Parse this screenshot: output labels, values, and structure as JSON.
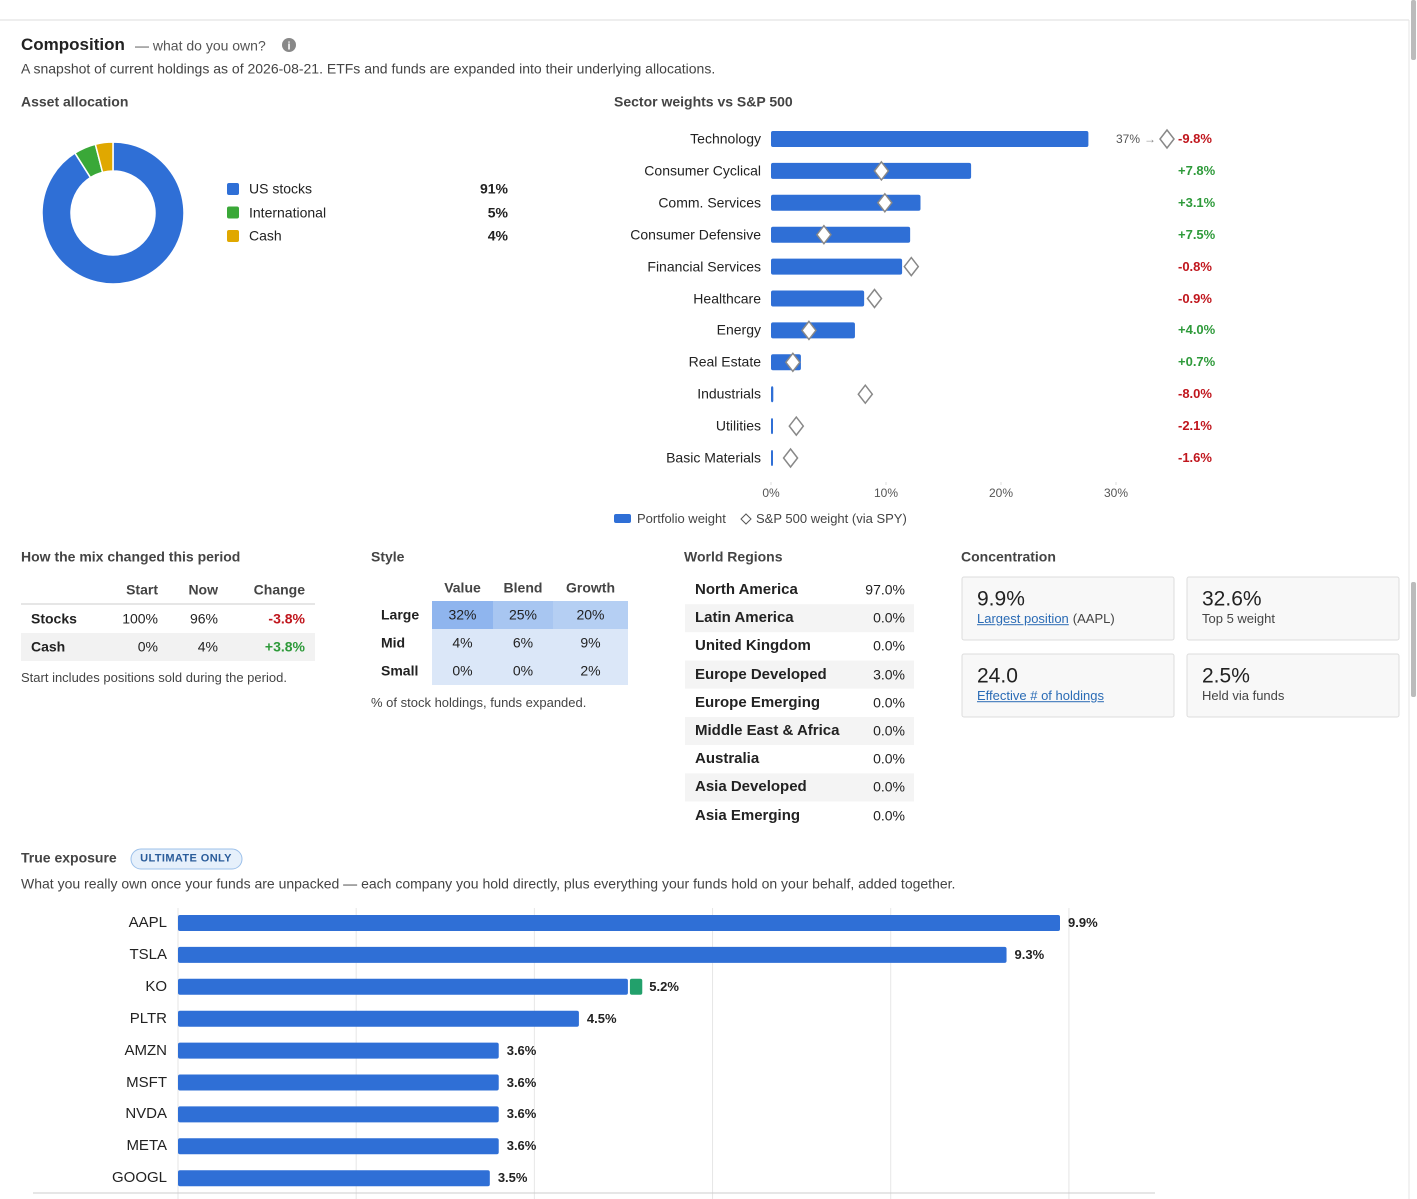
{
  "header": {
    "title": "Composition",
    "subtitle": "— what do you own?",
    "description": "A snapshot of current holdings as of 2026-08-21. ETFs and funds are expanded into their underlying allocations."
  },
  "chart_data": [
    {
      "type": "pie",
      "donut": true,
      "title": "Asset allocation",
      "categories": [
        "US stocks",
        "International",
        "Cash"
      ],
      "values": [
        91,
        5,
        4
      ],
      "value_labels": [
        "91%",
        "5%",
        "4%"
      ],
      "colors": [
        "#2f6fd6",
        "#3aa838",
        "#e0a800"
      ]
    },
    {
      "type": "bar",
      "orientation": "horizontal",
      "title": "Sector weights vs S&P 500",
      "categories": [
        "Technology",
        "Consumer Cyclical",
        "Comm. Services",
        "Consumer Defensive",
        "Financial Services",
        "Healthcare",
        "Energy",
        "Real Estate",
        "Industrials",
        "Utilities",
        "Basic Materials"
      ],
      "series": [
        {
          "name": "Portfolio weight",
          "color": "#2f6fd6",
          "values": [
            27.6,
            17.4,
            13.0,
            12.1,
            11.4,
            8.1,
            7.3,
            2.6,
            0.2,
            0.1,
            0.1
          ]
        },
        {
          "name": "S&P 500 weight (via SPY)",
          "marker": "diamond",
          "color": "#888888",
          "values": [
            37,
            9.6,
            9.9,
            4.6,
            12.2,
            9.0,
            3.3,
            1.9,
            8.2,
            2.2,
            1.7
          ],
          "value_labels": [
            "37%",
            null,
            null,
            null,
            null,
            null,
            null,
            null,
            null,
            null,
            null
          ]
        }
      ],
      "differences": {
        "values": [
          -9.8,
          7.8,
          3.1,
          7.5,
          -0.8,
          -0.9,
          4.0,
          0.7,
          -8.0,
          -2.1,
          -1.6
        ],
        "value_labels": [
          "-9.8%",
          "+7.8%",
          "+3.1%",
          "+7.5%",
          "-0.8%",
          "-0.9%",
          "+4.0%",
          "+0.7%",
          "-8.0%",
          "-2.1%",
          "-1.6%"
        ]
      },
      "xlim": [
        0,
        30
      ],
      "xticks": [
        {
          "value": 0,
          "label": "0%"
        },
        {
          "value": 10,
          "label": "10%"
        },
        {
          "value": 20,
          "label": "20%"
        },
        {
          "value": 30,
          "label": "30%"
        }
      ]
    },
    {
      "type": "bar",
      "orientation": "horizontal",
      "title": "True exposure",
      "badge": "ULTIMATE ONLY",
      "subtitle": "What you really own once your funds are unpacked — each company you hold directly, plus everything your funds hold on your behalf, added together.",
      "categories": [
        "AAPL",
        "TSLA",
        "KO",
        "PLTR",
        "AMZN",
        "MSFT",
        "NVDA",
        "META",
        "GOOGL"
      ],
      "series": [
        {
          "color": "#2f6fd6",
          "values": [
            9.9,
            9.3,
            5.05,
            4.5,
            3.6,
            3.6,
            3.6,
            3.6,
            3.5
          ]
        },
        {
          "color": "#22a06b",
          "values": [
            0,
            0,
            0.15,
            0,
            0,
            0,
            0,
            0,
            0
          ]
        }
      ],
      "totals": {
        "values": [
          9.9,
          9.3,
          5.2,
          4.5,
          3.6,
          3.6,
          3.6,
          3.6,
          3.5
        ],
        "value_labels": [
          "9.9%",
          "9.3%",
          "5.2%",
          "4.5%",
          "3.6%",
          "3.6%",
          "3.6%",
          "3.6%",
          "3.5%"
        ]
      },
      "xlim": [
        0,
        11
      ],
      "xticks": [
        0,
        2,
        4,
        6,
        8,
        10
      ],
      "grid": true
    }
  ],
  "mix": {
    "title": "How the mix changed this period",
    "columns": [
      "Start",
      "Now",
      "Change"
    ],
    "rows": [
      {
        "label": "Stocks",
        "cells": [
          "100%",
          "96%",
          "-3.8%"
        ]
      },
      {
        "label": "Cash",
        "cells": [
          "0%",
          "4%",
          "+3.8%"
        ]
      }
    ],
    "note": "Start includes positions sold during the period."
  },
  "style": {
    "title": "Style",
    "columns": [
      "Value",
      "Blend",
      "Growth"
    ],
    "rows": [
      {
        "label": "Large",
        "cells": [
          "32%",
          "25%",
          "20%"
        ]
      },
      {
        "label": "Mid",
        "cells": [
          "4%",
          "6%",
          "9%"
        ]
      },
      {
        "label": "Small",
        "cells": [
          "0%",
          "0%",
          "2%"
        ]
      }
    ],
    "note": "% of stock holdings, funds expanded."
  },
  "world_regions": {
    "title": "World Regions",
    "rows": [
      {
        "name": "North America",
        "value": "97.0%"
      },
      {
        "name": "Latin America",
        "value": "0.0%"
      },
      {
        "name": "United Kingdom",
        "value": "0.0%"
      },
      {
        "name": "Europe Developed",
        "value": "3.0%"
      },
      {
        "name": "Europe Emerging",
        "value": "0.0%"
      },
      {
        "name": "Middle East & Africa",
        "value": "0.0%"
      },
      {
        "name": "Australia",
        "value": "0.0%"
      },
      {
        "name": "Asia Developed",
        "value": "0.0%"
      },
      {
        "name": "Asia Emerging",
        "value": "0.0%"
      }
    ]
  },
  "concentration": {
    "title": "Concentration",
    "cards": [
      {
        "value": "9.9%",
        "label": "Largest position",
        "detail": "(AAPL)"
      },
      {
        "value": "32.6%",
        "label": "Top 5 weight"
      },
      {
        "value": "24.0",
        "label": "Effective # of holdings"
      },
      {
        "value": "2.5%",
        "label": "Held via funds"
      }
    ]
  }
}
